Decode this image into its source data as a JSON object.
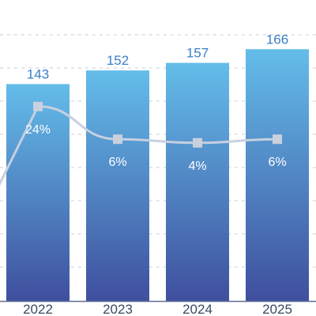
{
  "chart_data": {
    "type": "bar",
    "categories": [
      "2022",
      "2023",
      "2024",
      "2025"
    ],
    "series": [
      {
        "type": "bar",
        "values": [
          143,
          152,
          157,
          166
        ],
        "data_labels": [
          "143",
          "152",
          "157",
          "166"
        ]
      },
      {
        "type": "line",
        "values": [
          24,
          6,
          4,
          6
        ],
        "data_labels": [
          "24%",
          "6%",
          "4%",
          "6%"
        ]
      }
    ],
    "title": "",
    "xlabel": "",
    "ylabel": "",
    "grid": true,
    "colors": {
      "bar_top": "#63bde9",
      "bar_bottom": "#3f4f9e",
      "bar_value_text": "#3a7fc7",
      "line": "#c7cfe0",
      "marker": "#c9d0de",
      "grid": "#c9cfd9",
      "axis": "#5c6f91",
      "tick_text": "#3a4a63"
    }
  }
}
